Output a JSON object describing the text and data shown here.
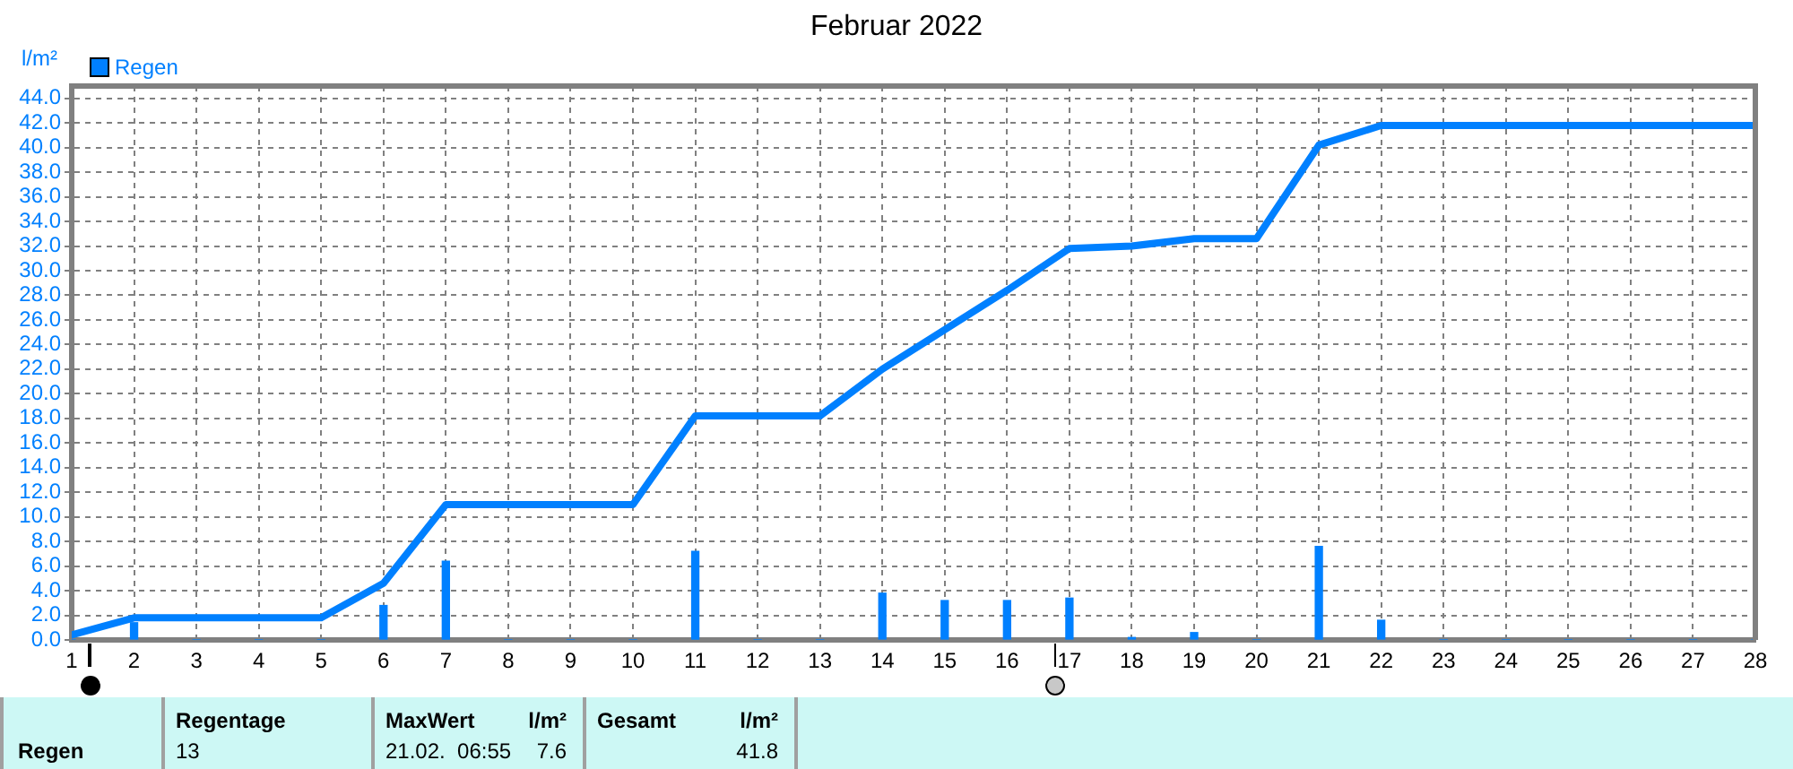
{
  "chart_data": {
    "type": "bar",
    "title": "Februar 2022",
    "ylabel": "l/m²",
    "x": [
      1,
      2,
      3,
      4,
      5,
      6,
      7,
      8,
      9,
      10,
      11,
      12,
      13,
      14,
      15,
      16,
      17,
      18,
      19,
      20,
      21,
      22,
      23,
      24,
      25,
      26,
      27,
      28
    ],
    "series": [
      {
        "name": "Regen",
        "color": "#0080ff",
        "values": [
          0,
          1.4,
          0,
          0,
          0,
          2.8,
          6.4,
          0,
          0,
          0,
          7.2,
          0,
          0,
          3.8,
          3.2,
          3.2,
          3.4,
          0.2,
          0.6,
          0,
          7.6,
          1.6,
          0,
          0,
          0,
          0,
          0,
          0
        ]
      },
      {
        "type": "line",
        "color": "#0080ff",
        "x": [
          1,
          2,
          5,
          6,
          7,
          10,
          11,
          13,
          14,
          15,
          16,
          17,
          18,
          19,
          20,
          21,
          22,
          28
        ],
        "values": [
          0.4,
          1.8,
          1.8,
          4.6,
          11.0,
          11.0,
          18.2,
          18.2,
          22.0,
          25.2,
          28.4,
          31.8,
          32.0,
          32.6,
          32.6,
          40.2,
          41.8,
          41.8
        ]
      }
    ],
    "xlim": [
      1,
      28
    ],
    "xticks": [
      1,
      2,
      3,
      4,
      5,
      6,
      7,
      8,
      9,
      10,
      11,
      12,
      13,
      14,
      15,
      16,
      17,
      18,
      19,
      20,
      21,
      22,
      23,
      24,
      25,
      26,
      27,
      28
    ],
    "ylim": [
      0,
      45
    ],
    "yticks": [
      {
        "value": 0,
        "label": "0.0"
      },
      {
        "value": 2,
        "label": "2.0"
      },
      {
        "value": 4,
        "label": "4.0"
      },
      {
        "value": 6,
        "label": "6.0"
      },
      {
        "value": 8,
        "label": "8.0"
      },
      {
        "value": 10,
        "label": "10.0"
      },
      {
        "value": 12,
        "label": "12.0"
      },
      {
        "value": 14,
        "label": "14.0"
      },
      {
        "value": 16,
        "label": "16.0"
      },
      {
        "value": 18,
        "label": "18.0"
      },
      {
        "value": 20,
        "label": "20.0"
      },
      {
        "value": 22,
        "label": "22.0"
      },
      {
        "value": 24,
        "label": "24.0"
      },
      {
        "value": 26,
        "label": "26.0"
      },
      {
        "value": 28,
        "label": "28.0"
      },
      {
        "value": 30,
        "label": "30.0"
      },
      {
        "value": 32,
        "label": "32.0"
      },
      {
        "value": 34,
        "label": "34.0"
      },
      {
        "value": 36,
        "label": "36.0"
      },
      {
        "value": 38,
        "label": "38.0"
      },
      {
        "value": 40,
        "label": "40.0"
      },
      {
        "value": 42,
        "label": "42.0"
      },
      {
        "value": 44,
        "label": "44.0"
      }
    ],
    "grid": true,
    "legend": "top left",
    "annotations": [
      "Regen",
      "Regentage",
      "13",
      "MaxWert",
      "l/m²",
      "21.02.  06:55",
      "7.6",
      "Gesamt",
      "l/m²",
      "41.8"
    ]
  }
}
